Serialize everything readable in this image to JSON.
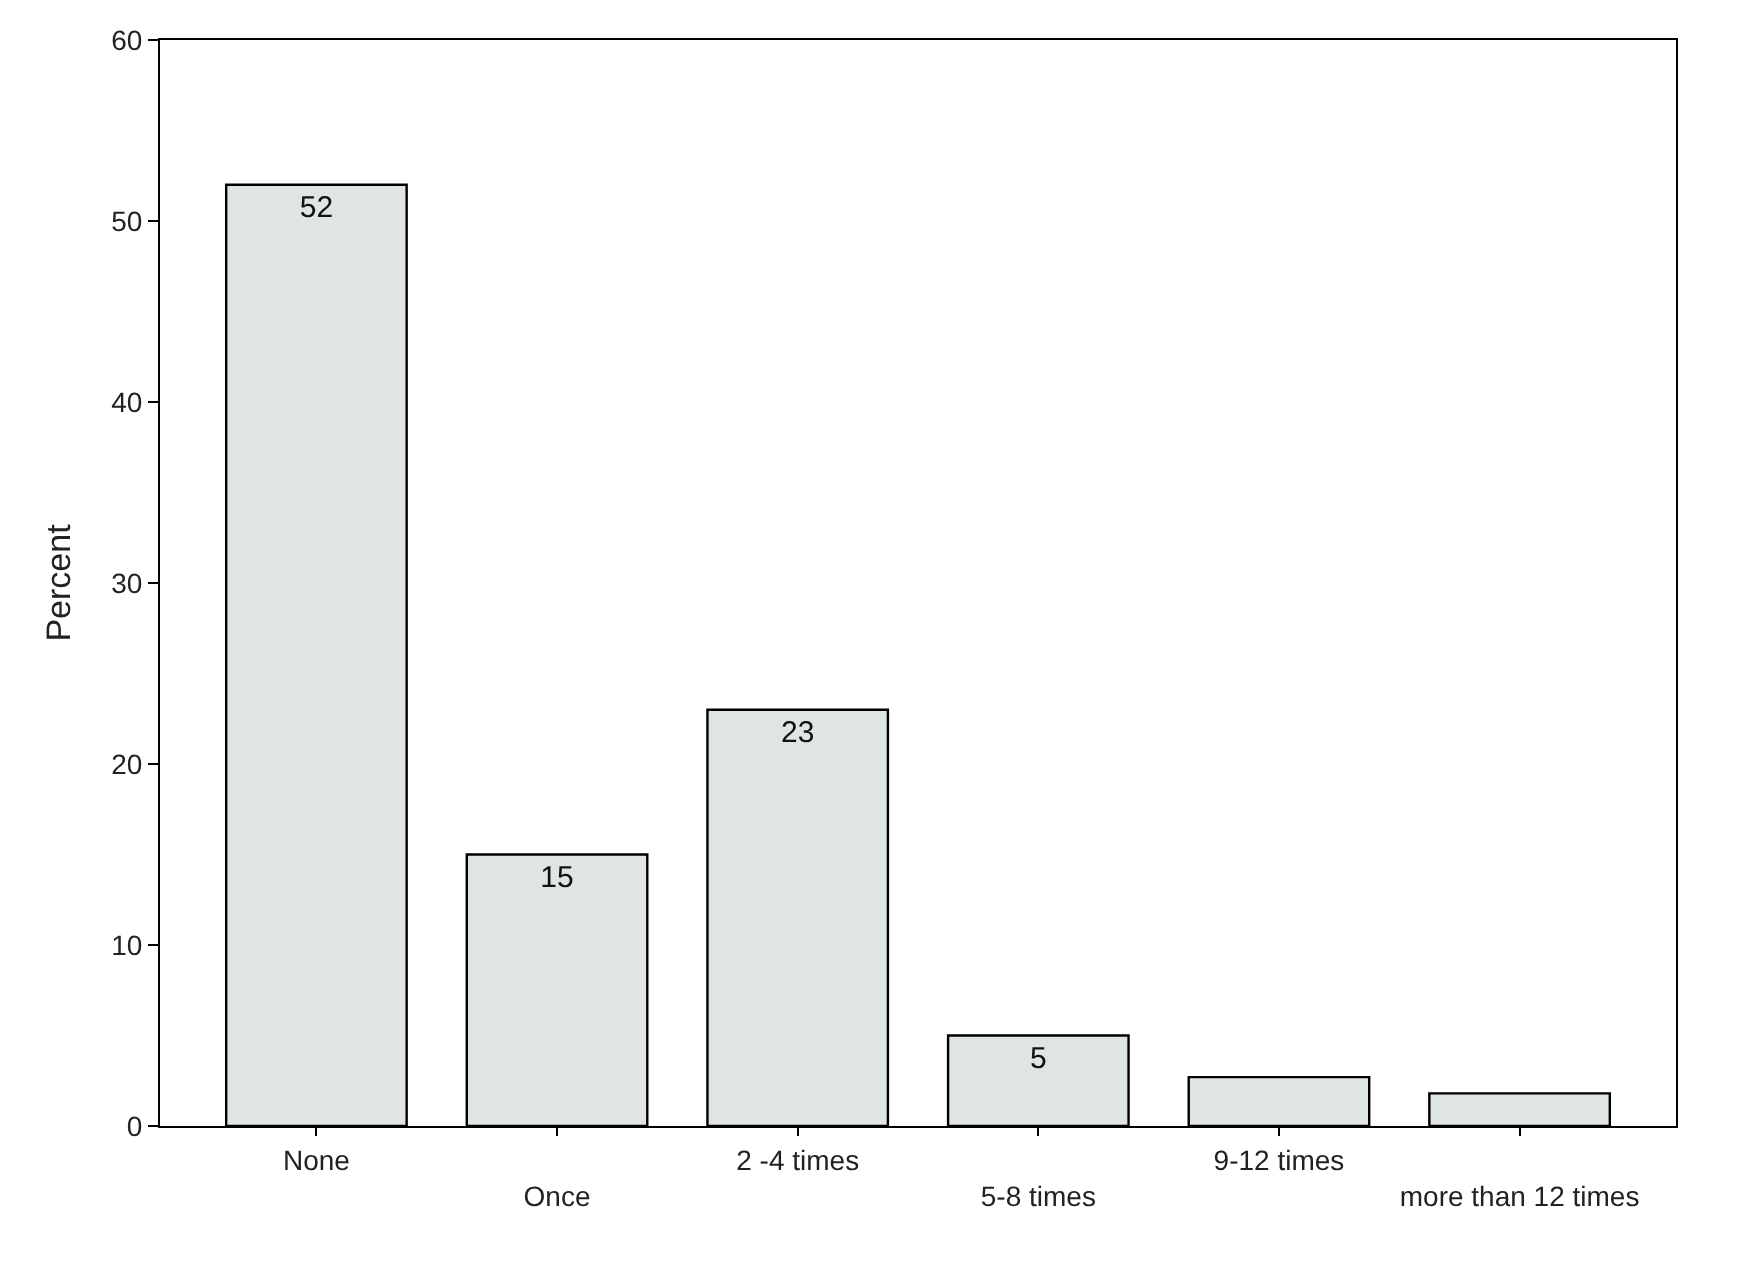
{
  "chart_data": {
    "type": "bar",
    "ylabel": "Percent",
    "categories": [
      "None",
      "Once",
      "2 -4 times",
      "5-8 times",
      "9-12 times",
      "more than 12 times"
    ],
    "values": [
      52,
      15,
      23,
      5,
      2.7,
      1.8
    ],
    "value_labels": [
      "52",
      "15",
      "23",
      "5",
      null,
      null
    ],
    "color": "#dfe5e2",
    "ylim": [
      0,
      60
    ],
    "yticks": [
      0,
      10,
      20,
      30,
      40,
      50,
      60
    ]
  }
}
